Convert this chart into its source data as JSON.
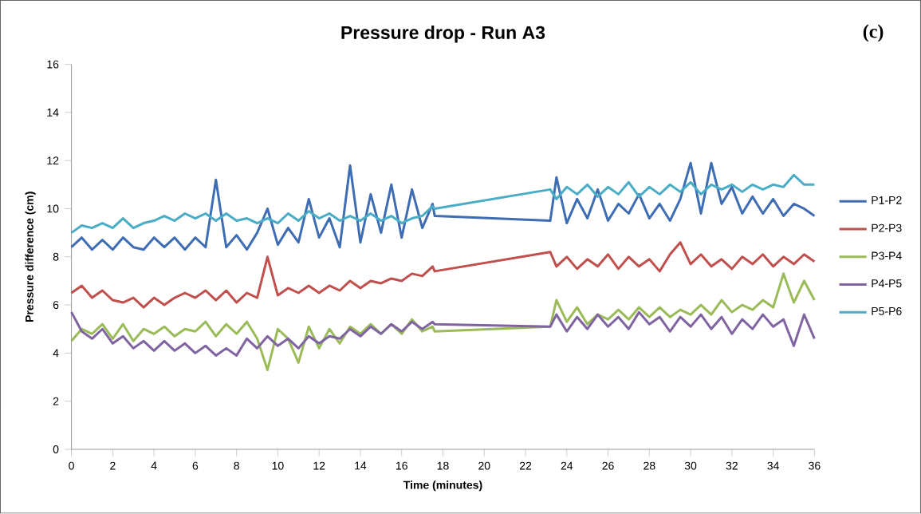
{
  "chart_data": {
    "type": "line",
    "title": "Pressure drop - Run A3",
    "xlabel": "Time (minutes)",
    "ylabel": "Pressure difference (cm)",
    "annotations": [
      "(c)"
    ],
    "x": [
      0,
      0.5,
      1,
      1.5,
      2,
      2.5,
      3,
      3.5,
      4,
      4.5,
      5,
      5.5,
      6,
      6.5,
      7,
      7.5,
      8,
      8.5,
      9,
      9.5,
      10,
      10.5,
      11,
      11.5,
      12,
      12.5,
      13,
      13.5,
      14,
      14.5,
      15,
      15.5,
      16,
      16.5,
      17,
      17.5,
      17.6,
      23.2,
      23.5,
      24,
      24.5,
      25,
      25.5,
      26,
      26.5,
      27,
      27.5,
      28,
      28.5,
      29,
      29.5,
      30,
      30.5,
      31,
      31.5,
      32,
      32.5,
      33,
      33.5,
      34,
      34.5,
      35,
      35.5,
      36
    ],
    "series": [
      {
        "name": "P1-P2",
        "color": "#3f6db3",
        "values": [
          8.4,
          8.8,
          8.3,
          8.7,
          8.3,
          8.8,
          8.4,
          8.3,
          8.8,
          8.4,
          8.8,
          8.3,
          8.8,
          8.4,
          11.2,
          8.4,
          8.9,
          8.3,
          9.0,
          10.0,
          8.5,
          9.2,
          8.6,
          10.4,
          8.8,
          9.6,
          8.4,
          11.8,
          8.6,
          10.6,
          9.0,
          11.0,
          8.8,
          10.8,
          9.2,
          10.2,
          9.7,
          9.5,
          11.3,
          9.4,
          10.4,
          9.6,
          10.8,
          9.5,
          10.2,
          9.8,
          10.6,
          9.6,
          10.2,
          9.5,
          10.4,
          11.9,
          9.8,
          11.9,
          10.2,
          10.9,
          9.8,
          10.5,
          9.8,
          10.4,
          9.7,
          10.2,
          10.0,
          9.7
        ]
      },
      {
        "name": "P2-P3",
        "color": "#c0504d",
        "values": [
          6.5,
          6.8,
          6.3,
          6.6,
          6.2,
          6.1,
          6.3,
          5.9,
          6.3,
          6.0,
          6.3,
          6.5,
          6.3,
          6.6,
          6.2,
          6.6,
          6.1,
          6.5,
          6.3,
          8.0,
          6.4,
          6.7,
          6.5,
          6.8,
          6.5,
          6.8,
          6.6,
          7.0,
          6.7,
          7.0,
          6.9,
          7.1,
          7.0,
          7.3,
          7.2,
          7.6,
          7.4,
          8.2,
          7.6,
          8.0,
          7.5,
          7.9,
          7.6,
          8.1,
          7.5,
          8.0,
          7.6,
          7.9,
          7.4,
          8.1,
          8.6,
          7.7,
          8.1,
          7.6,
          7.9,
          7.5,
          8.0,
          7.7,
          8.1,
          7.6,
          8.0,
          7.7,
          8.1,
          7.8
        ]
      },
      {
        "name": "P3-P4",
        "color": "#9bbb59",
        "values": [
          4.5,
          5.0,
          4.8,
          5.2,
          4.6,
          5.2,
          4.5,
          5.0,
          4.8,
          5.1,
          4.7,
          5.0,
          4.9,
          5.3,
          4.7,
          5.2,
          4.8,
          5.3,
          4.6,
          3.3,
          5.0,
          4.6,
          3.6,
          5.1,
          4.2,
          5.0,
          4.4,
          5.1,
          4.8,
          5.2,
          4.8,
          5.2,
          4.8,
          5.4,
          4.9,
          5.1,
          4.9,
          5.1,
          6.2,
          5.3,
          5.9,
          5.2,
          5.6,
          5.4,
          5.8,
          5.4,
          5.9,
          5.5,
          5.9,
          5.5,
          5.8,
          5.6,
          6.0,
          5.6,
          6.2,
          5.7,
          6.0,
          5.8,
          6.2,
          5.9,
          7.3,
          6.1,
          7.0,
          6.2
        ]
      },
      {
        "name": "P4-P5",
        "color": "#8064a2",
        "values": [
          5.7,
          4.9,
          4.6,
          5.0,
          4.4,
          4.7,
          4.2,
          4.5,
          4.1,
          4.5,
          4.1,
          4.4,
          4.0,
          4.3,
          3.9,
          4.2,
          3.9,
          4.6,
          4.2,
          4.7,
          4.3,
          4.6,
          4.2,
          4.7,
          4.4,
          4.7,
          4.6,
          5.0,
          4.7,
          5.1,
          4.8,
          5.2,
          4.9,
          5.3,
          5.0,
          5.3,
          5.2,
          5.1,
          5.6,
          4.9,
          5.5,
          5.0,
          5.6,
          5.1,
          5.5,
          5.0,
          5.7,
          5.2,
          5.5,
          4.9,
          5.5,
          5.1,
          5.6,
          5.0,
          5.5,
          4.8,
          5.4,
          5.0,
          5.6,
          5.1,
          5.4,
          4.3,
          5.6,
          4.6
        ]
      },
      {
        "name": "P5-P6",
        "color": "#4bacc6",
        "values": [
          9.0,
          9.3,
          9.2,
          9.4,
          9.2,
          9.6,
          9.2,
          9.4,
          9.5,
          9.7,
          9.5,
          9.8,
          9.6,
          9.8,
          9.5,
          9.8,
          9.5,
          9.6,
          9.4,
          9.6,
          9.4,
          9.8,
          9.5,
          9.9,
          9.6,
          9.8,
          9.5,
          9.7,
          9.5,
          9.8,
          9.5,
          9.7,
          9.4,
          9.6,
          9.7,
          10.1,
          10.0,
          10.8,
          10.4,
          10.9,
          10.6,
          11.0,
          10.5,
          10.9,
          10.6,
          11.1,
          10.5,
          10.9,
          10.6,
          11.0,
          10.7,
          11.1,
          10.6,
          11.0,
          10.8,
          11.0,
          10.7,
          11.0,
          10.8,
          11.0,
          10.9,
          11.4,
          11.0,
          11.0
        ]
      }
    ],
    "xlim": [
      0,
      36
    ],
    "ylim": [
      0,
      16
    ],
    "xticks": [
      0,
      2,
      4,
      6,
      8,
      10,
      12,
      14,
      16,
      18,
      20,
      22,
      24,
      26,
      28,
      30,
      32,
      34,
      36
    ],
    "yticks": [
      0,
      2,
      4,
      6,
      8,
      10,
      12,
      14,
      16
    ],
    "legend": "right",
    "marker": "none",
    "line_style": "solid"
  }
}
